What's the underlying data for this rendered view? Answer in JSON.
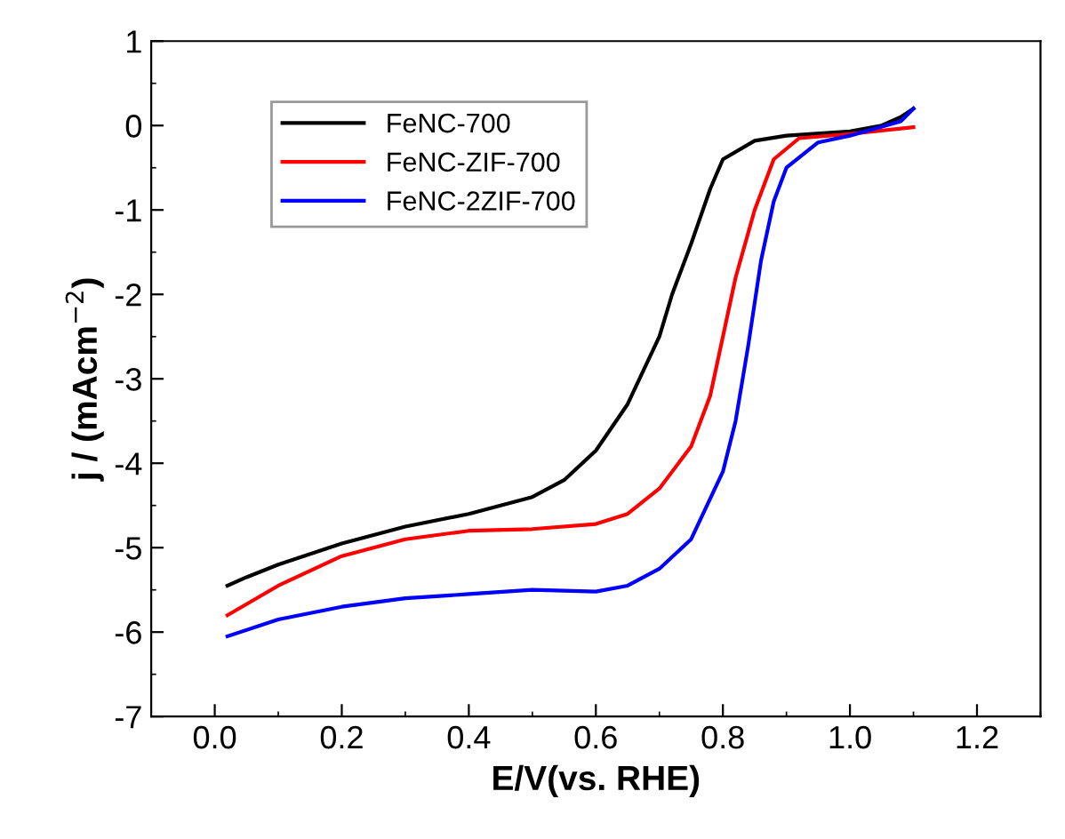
{
  "chart_data": {
    "type": "line",
    "xlabel": "E/V(vs. RHE)",
    "ylabel": "j / (mAcm$^{−2}$)",
    "xlim": [
      -0.1,
      1.3
    ],
    "ylim": [
      -7,
      1
    ],
    "xticks": [
      {
        "value": 0,
        "label": "0.0"
      },
      0.2,
      0.4,
      0.6,
      0.8,
      {
        "value": 1,
        "label": "1.0"
      },
      1.2
    ],
    "yticks": [
      -7,
      -6,
      -5,
      -4,
      -3,
      -2,
      -1,
      0,
      1
    ],
    "legend": "top left",
    "grid": false,
    "marker": "none",
    "line_style": "solid",
    "series": [
      {
        "name": "FeNC-700",
        "color": "#000000",
        "x": [
          0.02,
          0.05,
          0.1,
          0.2,
          0.3,
          0.4,
          0.5,
          0.55,
          0.6,
          0.65,
          0.7,
          0.72,
          0.75,
          0.78,
          0.8,
          0.85,
          0.9,
          1.0,
          1.05,
          1.08,
          1.1
        ],
        "values": [
          -5.45,
          -5.35,
          -5.2,
          -4.95,
          -4.75,
          -4.6,
          -4.4,
          -4.2,
          -3.85,
          -3.3,
          -2.5,
          -2.0,
          -1.4,
          -0.75,
          -0.4,
          -0.18,
          -0.12,
          -0.07,
          0.0,
          0.1,
          0.2
        ]
      },
      {
        "name": "FeNC-ZIF-700",
        "color": "#ff0000",
        "x": [
          0.02,
          0.1,
          0.2,
          0.3,
          0.4,
          0.5,
          0.6,
          0.65,
          0.7,
          0.75,
          0.78,
          0.8,
          0.82,
          0.85,
          0.88,
          0.92,
          1.0,
          1.1
        ],
        "values": [
          -5.8,
          -5.45,
          -5.1,
          -4.9,
          -4.8,
          -4.78,
          -4.72,
          -4.6,
          -4.3,
          -3.8,
          -3.2,
          -2.5,
          -1.8,
          -1.0,
          -0.4,
          -0.15,
          -0.1,
          -0.02
        ]
      },
      {
        "name": "FeNC-2ZIF-700",
        "color": "#0000ff",
        "x": [
          0.02,
          0.1,
          0.2,
          0.3,
          0.4,
          0.5,
          0.6,
          0.65,
          0.7,
          0.75,
          0.8,
          0.82,
          0.84,
          0.86,
          0.88,
          0.9,
          0.95,
          1.0,
          1.08,
          1.1
        ],
        "values": [
          -6.05,
          -5.85,
          -5.7,
          -5.6,
          -5.55,
          -5.5,
          -5.52,
          -5.45,
          -5.25,
          -4.9,
          -4.1,
          -3.5,
          -2.6,
          -1.6,
          -0.9,
          -0.5,
          -0.2,
          -0.12,
          0.05,
          0.2
        ]
      }
    ]
  }
}
